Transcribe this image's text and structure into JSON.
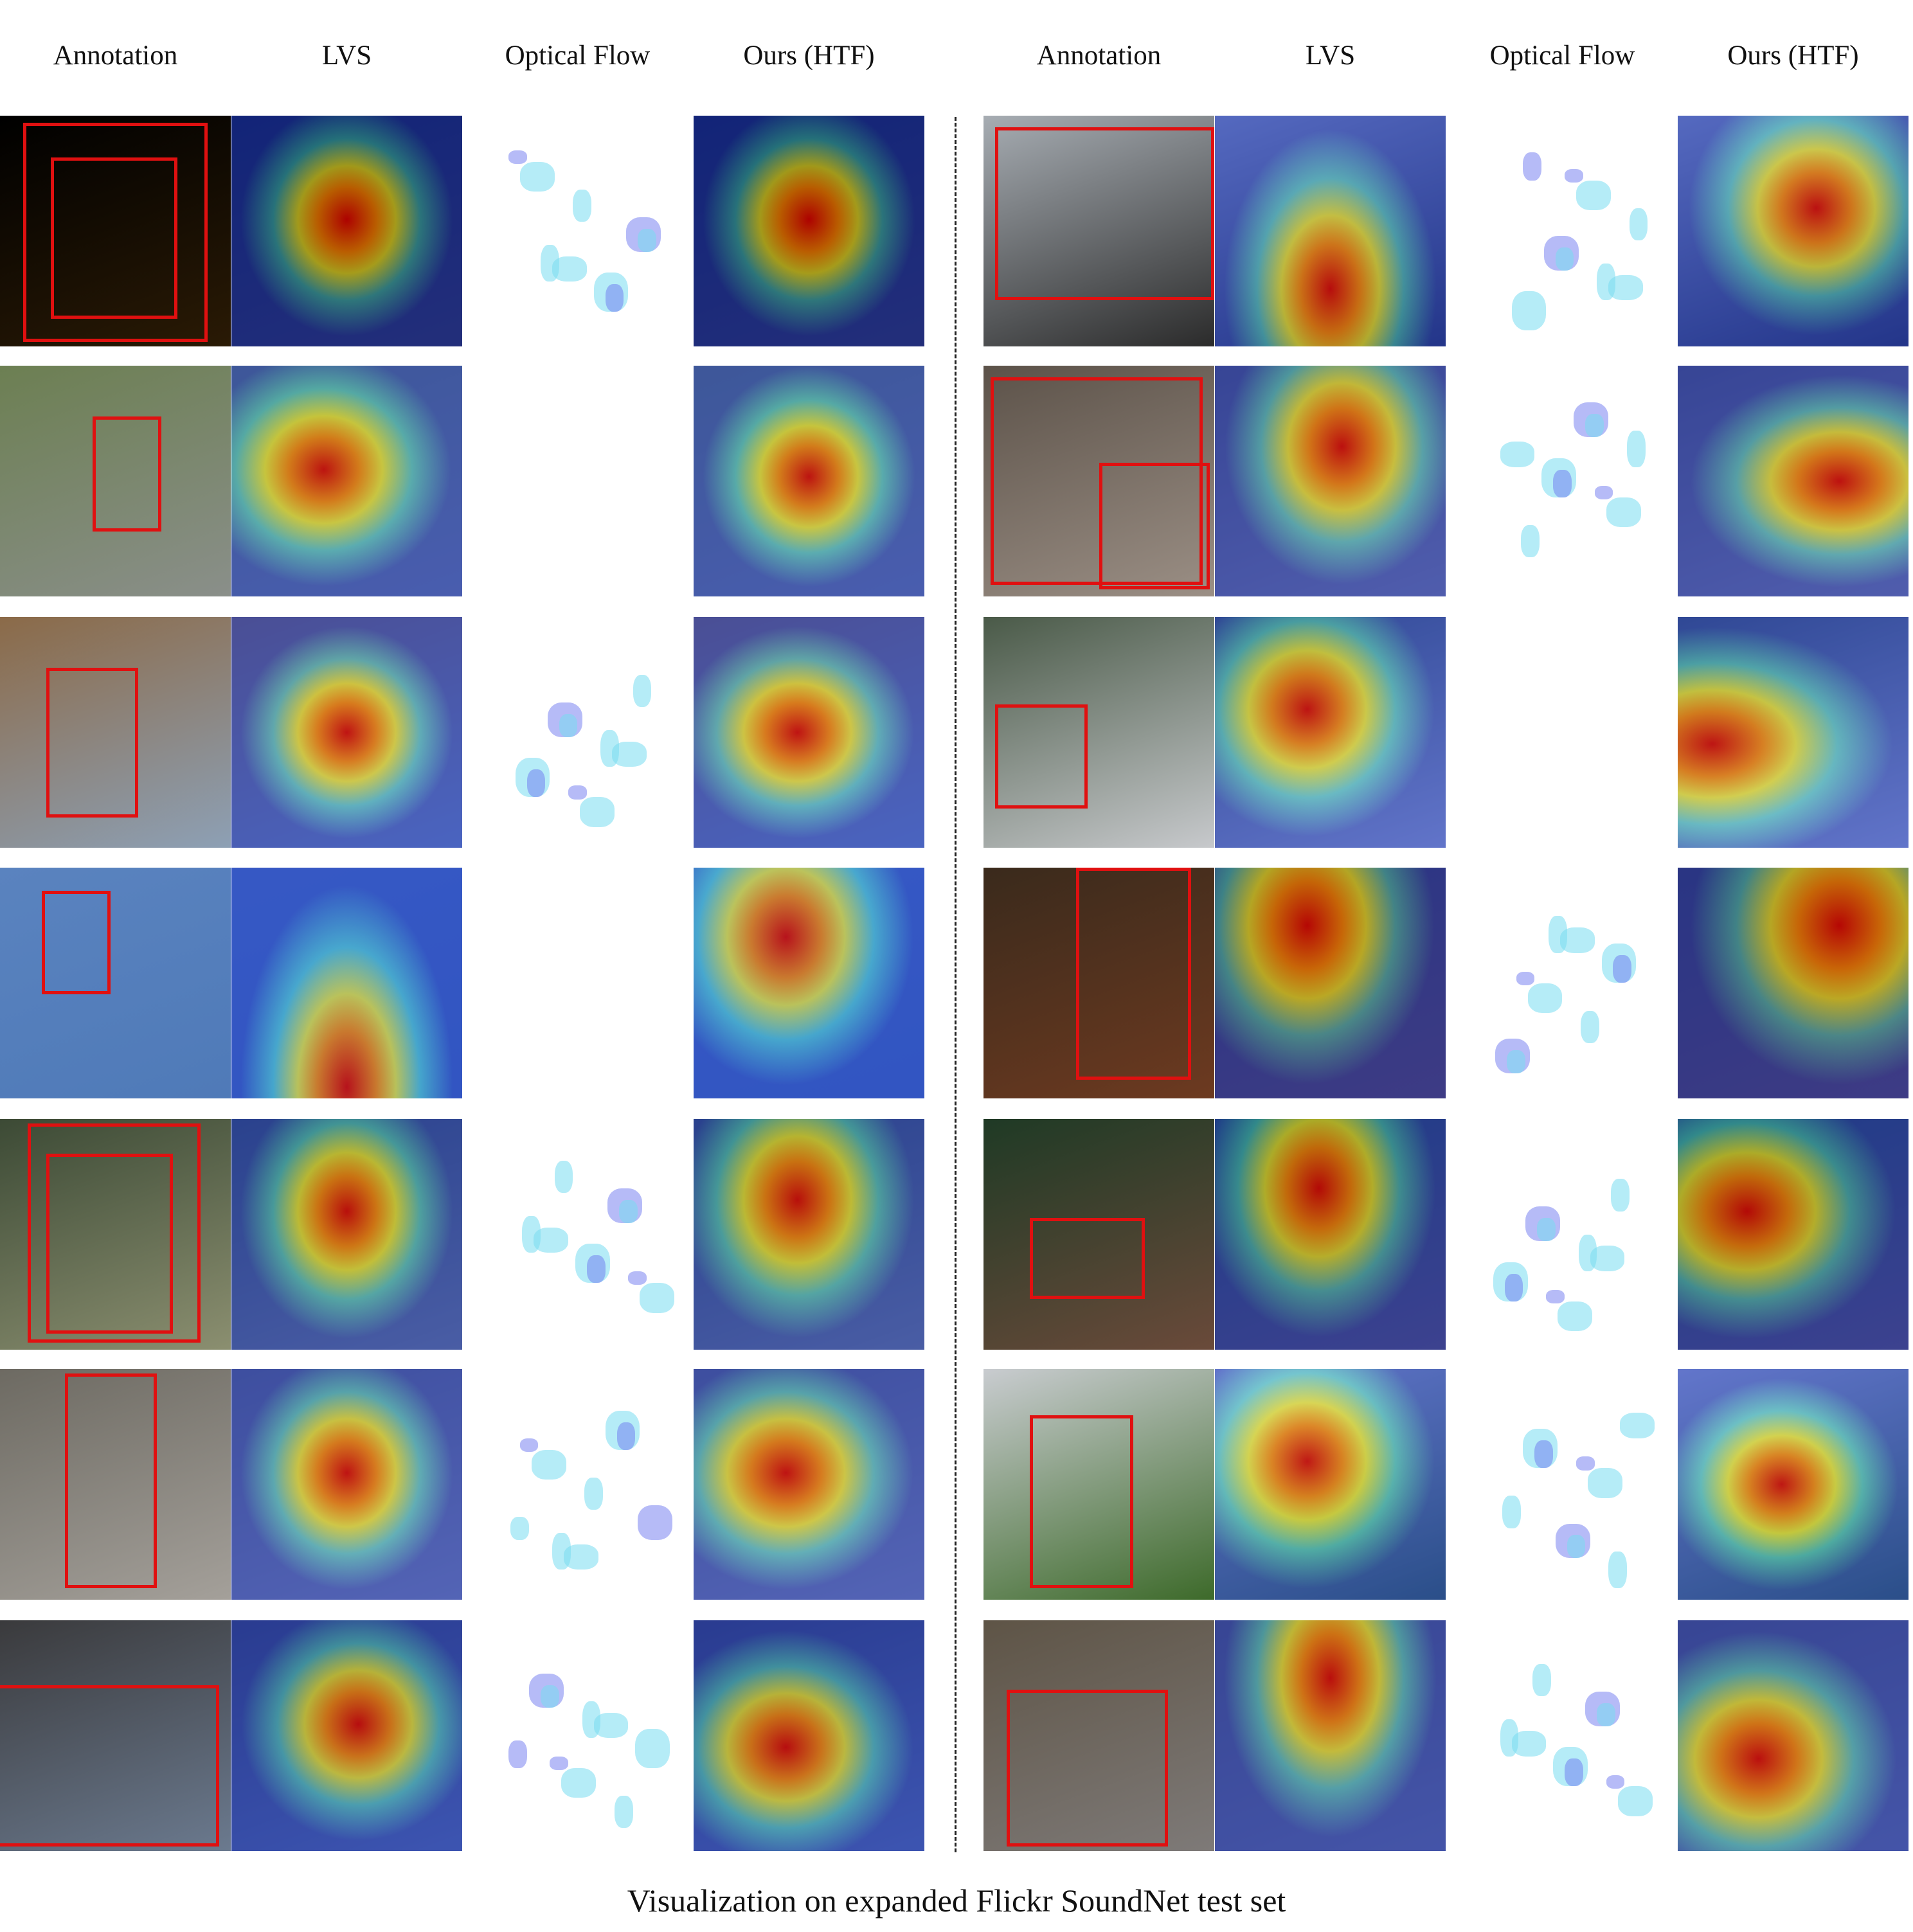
{
  "figure": {
    "panels": [
      {
        "columns": [
          "Annotation",
          "LVS",
          "Optical Flow",
          "Ours (HTF)"
        ]
      },
      {
        "columns": [
          "Annotation",
          "LVS",
          "Optical Flow",
          "Ours (HTF)"
        ]
      }
    ],
    "caption": "Visualization on expanded Flickr SoundNet test set"
  }
}
